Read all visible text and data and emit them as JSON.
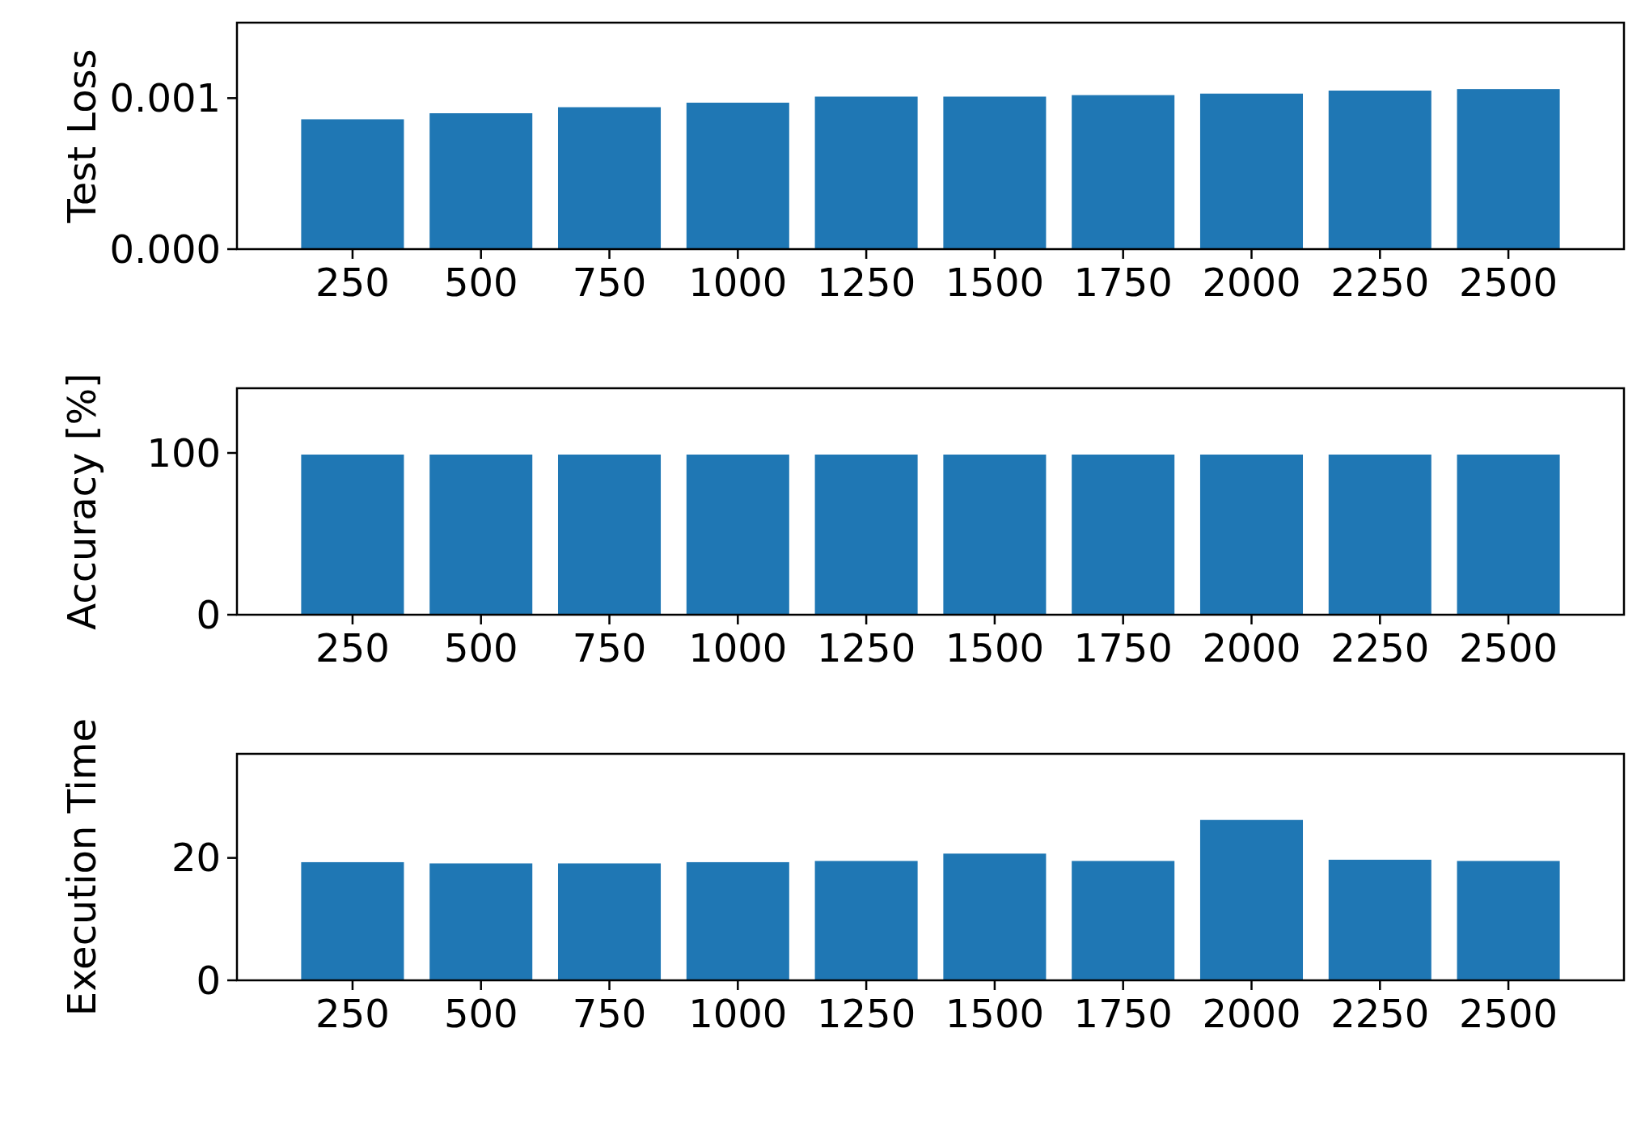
{
  "chart_data": [
    {
      "type": "bar",
      "ylabel": "Test Loss",
      "categories": [
        "250",
        "500",
        "750",
        "1000",
        "1250",
        "1500",
        "1750",
        "2000",
        "2250",
        "2500"
      ],
      "values": [
        0.00086,
        0.0009,
        0.00094,
        0.00097,
        0.00101,
        0.00101,
        0.00102,
        0.00103,
        0.00105,
        0.00106
      ],
      "color": "#1f77b4",
      "ylim": [
        0,
        0.0015
      ],
      "yticks": [
        {
          "value": 0,
          "label": "0.000"
        },
        {
          "value": 0.001,
          "label": "0.001"
        }
      ],
      "grid": false
    },
    {
      "type": "bar",
      "ylabel": "Accuracy [%]",
      "categories": [
        "250",
        "500",
        "750",
        "1000",
        "1250",
        "1500",
        "1750",
        "2000",
        "2250",
        "2500"
      ],
      "values": [
        99,
        99,
        99,
        99,
        99,
        99,
        99,
        99,
        99,
        99
      ],
      "color": "#1f77b4",
      "ylim": [
        0,
        140
      ],
      "yticks": [
        0,
        100
      ],
      "grid": false
    },
    {
      "type": "bar",
      "ylabel": "Execution Time",
      "categories": [
        "250",
        "500",
        "750",
        "1000",
        "1250",
        "1500",
        "1750",
        "2000",
        "2250",
        "2500"
      ],
      "values": [
        19.3,
        19.1,
        19.1,
        19.3,
        19.5,
        20.7,
        19.5,
        26.2,
        19.7,
        19.5
      ],
      "color": "#1f77b4",
      "ylim": [
        0,
        37
      ],
      "yticks": [
        0,
        20
      ],
      "grid": false
    }
  ]
}
